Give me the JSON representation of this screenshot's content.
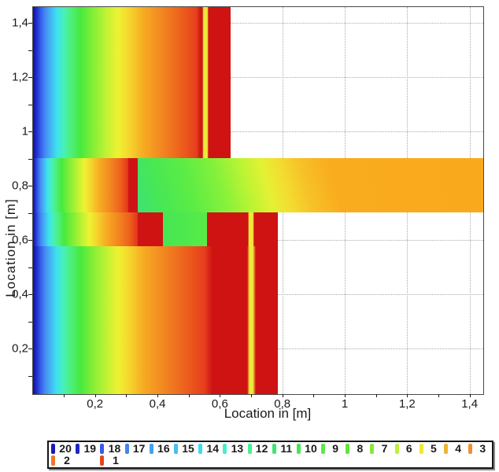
{
  "axes": {
    "x_label": "Location in [m]",
    "y_label": "Location in [m]",
    "x_ticks": [
      "0,2",
      "0,4",
      "0,6",
      "0,8",
      "1",
      "1,2",
      "1,4"
    ],
    "y_ticks": [
      "1,4",
      "1,2",
      "1",
      "0,8",
      "0,6",
      "0,4",
      "0,2"
    ]
  },
  "legend": {
    "row1": [
      {
        "label": "20",
        "color": "#1A1AB4"
      },
      {
        "label": "19",
        "color": "#2226C8"
      },
      {
        "label": "18",
        "color": "#3C5AE6"
      },
      {
        "label": "17",
        "color": "#4684F0"
      },
      {
        "label": "16",
        "color": "#40A2F2"
      },
      {
        "label": "15",
        "color": "#46C0F0"
      },
      {
        "label": "14",
        "color": "#3CDCF0"
      },
      {
        "label": "13",
        "color": "#46F0C8"
      },
      {
        "label": "12",
        "color": "#46F096"
      },
      {
        "label": "11",
        "color": "#3EE673"
      },
      {
        "label": "10",
        "color": "#46E650"
      },
      {
        "label": "9",
        "color": "#5AEB46"
      },
      {
        "label": "8",
        "color": "#5FE53C"
      },
      {
        "label": "7",
        "color": "#8CE63C"
      },
      {
        "label": "6",
        "color": "#C0EE3A"
      },
      {
        "label": "5",
        "color": "#EDE838"
      },
      {
        "label": "4",
        "color": "#EDB434"
      },
      {
        "label": "3",
        "color": "#EE9030"
      }
    ],
    "row2": [
      {
        "label": "2",
        "color": "#F07828"
      },
      {
        "label": "1",
        "color": "#E6461E"
      }
    ]
  },
  "chart_data": {
    "type": "heatmap",
    "description": "2-D steady-state temperature field (isotherm color map) of a wall / floor-slab thermal-bridge junction, 20 color levels from cold (blue, level 20) to warm (red/orange, level 1)",
    "xlabel": "Location in [m]",
    "ylabel": "Location in [m]",
    "xlim": [
      0,
      1.45
    ],
    "ylim": [
      0,
      1.46
    ],
    "x_tick_values": [
      0.2,
      0.4,
      0.6,
      0.8,
      1.0,
      1.2,
      1.4
    ],
    "y_tick_values": [
      0.2,
      0.4,
      0.6,
      0.8,
      1.0,
      1.2,
      1.4
    ],
    "grid": "dotted gray lines every 0.2 m, drawn beneath the color field",
    "legend_levels": [
      20,
      19,
      18,
      17,
      16,
      15,
      14,
      13,
      12,
      11,
      10,
      9,
      8,
      7,
      6,
      5,
      4,
      3,
      2,
      1
    ],
    "legend_position": "horizontal box below plot",
    "regions": [
      {
        "name": "wall_above_slab",
        "x": [
          0.0,
          0.635
        ],
        "y": [
          0.9,
          1.46
        ],
        "gradient": "blue #11119B at x=0 through cyan, green, yellow, orange to dark red #CF1313 at right face"
      },
      {
        "name": "thin_warm_streak_above_slab",
        "x": [
          0.543,
          0.56
        ],
        "y": [
          0.9,
          1.46
        ],
        "color": "#EFE93A"
      },
      {
        "name": "wall_at_slab_level",
        "x": [
          0.0,
          0.306
        ],
        "y": [
          0.7,
          0.9
        ],
        "gradient": "blue to red compressed against slab"
      },
      {
        "name": "red_strip_left_of_slab",
        "x": [
          0.306,
          0.337
        ],
        "y": [
          0.575,
          0.9
        ],
        "color": "#CE1414"
      },
      {
        "name": "floor_slab",
        "x": [
          0.337,
          1.447
        ],
        "y": [
          0.7,
          0.9
        ],
        "gradient": "green #3EE276 at wall junction through yellow to uniform orange #F9A91C toward right edge"
      },
      {
        "name": "protrusion_below_slab",
        "x": [
          0.417,
          0.559
        ],
        "y": [
          0.577,
          0.7
        ],
        "color": "green #46E650"
      },
      {
        "name": "wall_below_slab",
        "x": [
          0.0,
          0.783
        ],
        "y": [
          0.0,
          0.7
        ],
        "gradient": "blue at x=0 through green/yellow/orange to dark red #CF1313 band ending at x=0.783"
      },
      {
        "name": "thin_warm_streak_below_slab",
        "x": [
          0.689,
          0.706
        ],
        "y": [
          0.0,
          0.7
        ],
        "color": "#EFE93A"
      },
      {
        "name": "background",
        "color": "#FFFFFF"
      }
    ]
  }
}
